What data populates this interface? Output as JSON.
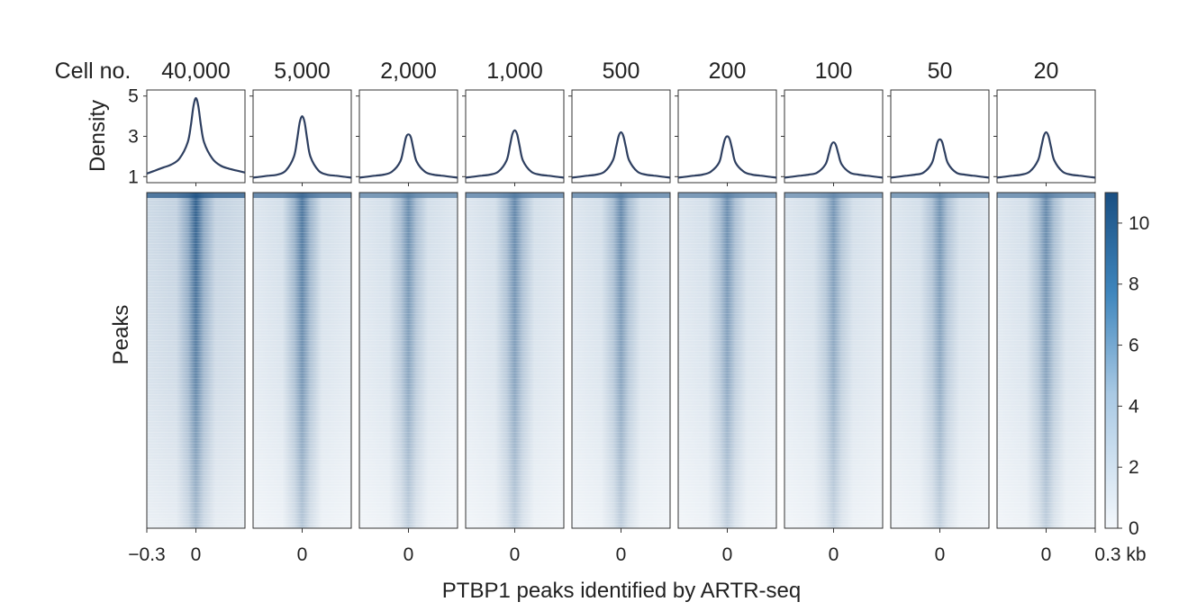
{
  "chart_data": {
    "type": "heatmap",
    "title": "",
    "header_label": "Cell no.",
    "xlabel": "PTBP1 peaks identified by ARTR-seq",
    "x_unit": "kb",
    "x_range": [
      -0.3,
      0.3
    ],
    "x_ticks_first_panel": [
      "−0.3",
      "0"
    ],
    "x_ticks_middle_panels": [
      "0"
    ],
    "x_ticks_last_panel": [
      "0",
      "0.3 kb"
    ],
    "density": {
      "ylabel": "Density",
      "ylim": [
        0.7,
        5.3
      ],
      "yticks": [
        1,
        3,
        5
      ],
      "line_color": "#2e3f60",
      "x": [
        -0.3,
        -0.25,
        -0.2,
        -0.15,
        -0.1,
        -0.05,
        -0.03,
        -0.015,
        0,
        0.015,
        0.03,
        0.05,
        0.1,
        0.15,
        0.2,
        0.25,
        0.3
      ]
    },
    "heatmap": {
      "ylabel": "Peaks",
      "colorscale": [
        "#f4f8fc",
        "#1a4f82"
      ],
      "colorbar": {
        "min": 0,
        "max": 11,
        "ticks": [
          0,
          2,
          4,
          6,
          8,
          10
        ]
      }
    },
    "series": [
      {
        "name": "40,000",
        "peak": 4.9,
        "baseline": 1.3,
        "density": [
          1.15,
          1.3,
          1.45,
          1.6,
          1.9,
          2.7,
          3.6,
          4.5,
          4.9,
          4.5,
          3.6,
          2.7,
          1.9,
          1.55,
          1.4,
          1.3,
          1.2
        ]
      },
      {
        "name": "5,000",
        "peak": 4.0,
        "baseline": 1.0,
        "density": [
          0.95,
          1.0,
          1.05,
          1.1,
          1.3,
          2.0,
          2.9,
          3.7,
          4.0,
          3.7,
          2.9,
          2.0,
          1.3,
          1.1,
          1.05,
          1.0,
          0.95
        ]
      },
      {
        "name": "2,000",
        "peak": 3.1,
        "baseline": 1.0,
        "density": [
          0.95,
          1.0,
          1.05,
          1.1,
          1.25,
          1.75,
          2.4,
          2.95,
          3.1,
          2.95,
          2.4,
          1.75,
          1.25,
          1.1,
          1.05,
          1.0,
          0.95
        ]
      },
      {
        "name": "1,000",
        "peak": 3.3,
        "baseline": 1.0,
        "density": [
          0.95,
          1.0,
          1.05,
          1.1,
          1.25,
          1.8,
          2.5,
          3.1,
          3.3,
          3.1,
          2.5,
          1.8,
          1.25,
          1.1,
          1.05,
          1.0,
          0.95
        ]
      },
      {
        "name": "500",
        "peak": 3.2,
        "baseline": 1.0,
        "density": [
          0.95,
          1.0,
          1.05,
          1.1,
          1.25,
          1.8,
          2.45,
          3.0,
          3.2,
          3.0,
          2.45,
          1.8,
          1.25,
          1.1,
          1.05,
          1.0,
          0.95
        ]
      },
      {
        "name": "200",
        "peak": 3.0,
        "baseline": 1.0,
        "density": [
          0.95,
          1.0,
          1.05,
          1.1,
          1.25,
          1.7,
          2.35,
          2.85,
          3.0,
          2.85,
          2.35,
          1.7,
          1.25,
          1.1,
          1.05,
          1.0,
          0.95
        ]
      },
      {
        "name": "100",
        "peak": 2.7,
        "baseline": 1.0,
        "density": [
          0.95,
          1.0,
          1.05,
          1.1,
          1.2,
          1.6,
          2.1,
          2.55,
          2.7,
          2.55,
          2.1,
          1.6,
          1.2,
          1.1,
          1.05,
          1.0,
          0.95
        ]
      },
      {
        "name": "50",
        "peak": 2.85,
        "baseline": 1.0,
        "density": [
          0.95,
          1.0,
          1.05,
          1.1,
          1.2,
          1.65,
          2.2,
          2.7,
          2.85,
          2.7,
          2.2,
          1.65,
          1.2,
          1.1,
          1.05,
          1.0,
          0.95
        ]
      },
      {
        "name": "20",
        "peak": 3.2,
        "baseline": 1.0,
        "density": [
          0.95,
          1.0,
          1.05,
          1.1,
          1.25,
          1.8,
          2.45,
          3.0,
          3.2,
          3.0,
          2.45,
          1.8,
          1.25,
          1.1,
          1.05,
          1.0,
          0.95
        ]
      }
    ]
  }
}
